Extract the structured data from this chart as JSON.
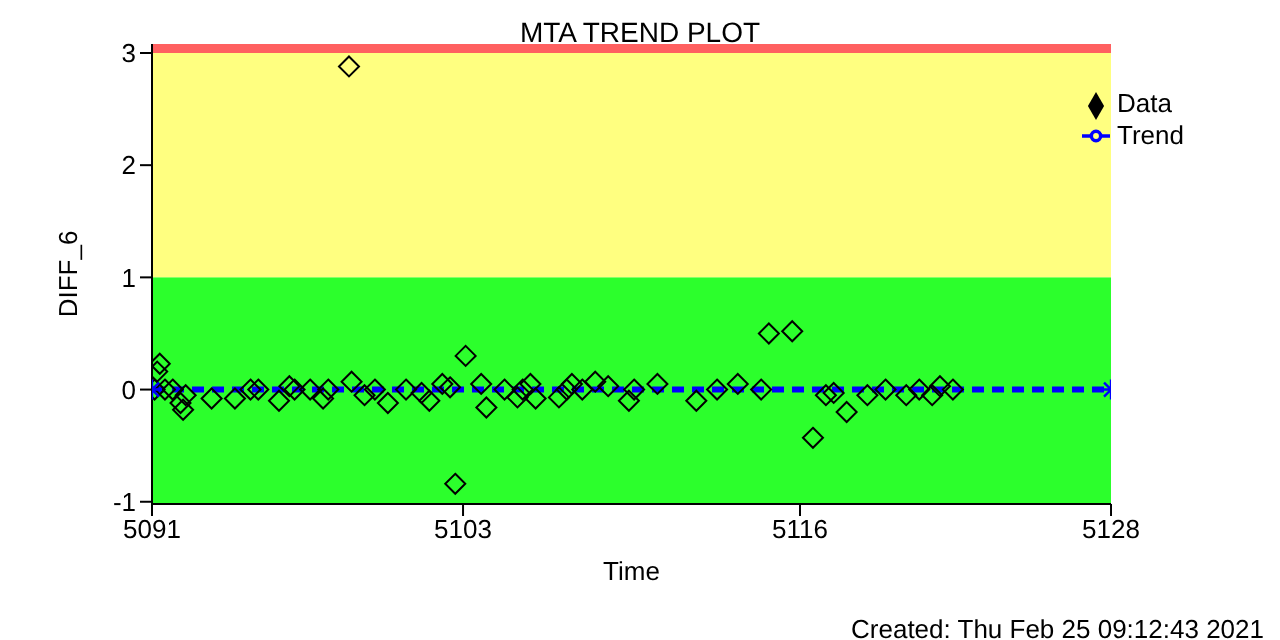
{
  "chart_data": {
    "type": "scatter",
    "title": "MTA TREND PLOT",
    "xlabel": "Time",
    "ylabel": "DIFF_6",
    "annotations": [
      "Created: Thu Feb 25 09:12:43 2021"
    ],
    "xlim": [
      5091,
      5128
    ],
    "xticks": [
      5091,
      5103,
      5116,
      5128
    ],
    "ylim": [
      -1.02,
      3.08
    ],
    "yticks": [
      -1,
      0,
      1,
      2,
      3
    ],
    "legend": "top right",
    "bands": [
      {
        "axis": "y",
        "from": -1.02,
        "to": 1,
        "color": "#2cff2c"
      },
      {
        "axis": "y",
        "from": 1,
        "to": 3,
        "color": "#ffff80"
      },
      {
        "axis": "y",
        "from": 3,
        "to": 3.08,
        "color": "#ff6060"
      }
    ],
    "series": [
      {
        "name": "Data",
        "color": "#000000",
        "marker": "diamond",
        "x": [
          5091.1,
          5091.2,
          5091.3,
          5091.5,
          5091.8,
          5092.1,
          5092.2,
          5092.3,
          5093.3,
          5094.2,
          5094.8,
          5095.1,
          5095.9,
          5096.3,
          5096.5,
          5097.1,
          5097.6,
          5097.8,
          5098.6,
          5098.7,
          5099.2,
          5099.6,
          5100.1,
          5100.8,
          5101.4,
          5101.7,
          5102.2,
          5102.5,
          5102.7,
          5103.1,
          5103.7,
          5103.9,
          5104.6,
          5105.1,
          5105.3,
          5105.6,
          5105.8,
          5106.7,
          5107,
          5107.2,
          5107.6,
          5108.1,
          5108.6,
          5109.4,
          5109.6,
          5110.5,
          5112,
          5112.8,
          5113.6,
          5114.5,
          5114.8,
          5115.7,
          5116.5,
          5117,
          5117.3,
          5117.8,
          5118.6,
          5119.3,
          5120.1,
          5120.6,
          5121.1,
          5121.4,
          5121.9
        ],
        "values": [
          0,
          0.16,
          0.23,
          0,
          0,
          -0.12,
          -0.18,
          -0.05,
          -0.08,
          -0.08,
          0,
          0,
          -0.1,
          0.03,
          0,
          0,
          -0.08,
          0,
          2.88,
          0.07,
          -0.05,
          0,
          -0.12,
          0,
          -0.03,
          -0.1,
          0.05,
          0.02,
          -0.84,
          0.3,
          0.05,
          -0.16,
          0,
          -0.07,
          0,
          0.05,
          -0.08,
          -0.07,
          0,
          0.05,
          0,
          0.07,
          0.03,
          -0.1,
          0,
          0.05,
          -0.1,
          0,
          0.05,
          0,
          0.5,
          0.52,
          -0.43,
          -0.05,
          -0.03,
          -0.2,
          -0.05,
          0,
          -0.05,
          0,
          -0.05,
          0.03,
          0
        ]
      },
      {
        "name": "Trend",
        "type": "line",
        "color": "#0000ff",
        "marker": "cross",
        "line_style": "dashed",
        "x": [
          5091,
          5128
        ],
        "values": [
          0,
          0
        ]
      }
    ]
  }
}
